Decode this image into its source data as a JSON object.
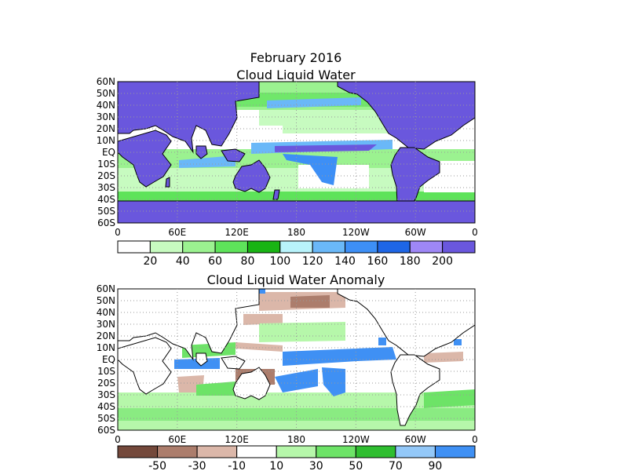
{
  "figure": {
    "title_line1": "February 2016",
    "title_line2": "Cloud Liquid Water",
    "anomaly_title": "Cloud Liquid Water Anomaly"
  },
  "axes": {
    "lat_labels": [
      "60N",
      "50N",
      "40N",
      "30N",
      "20N",
      "10N",
      "EQ",
      "10S",
      "20S",
      "30S",
      "40S",
      "50S",
      "60S"
    ],
    "lon_labels": [
      "0",
      "60E",
      "120E",
      "180",
      "120W",
      "60W",
      "0"
    ]
  },
  "colorbar_top": {
    "colors": [
      "#ffffff",
      "#c7fbc0",
      "#9bf290",
      "#5ee35a",
      "#19b414",
      "#b8f3fb",
      "#6ab8f8",
      "#3d8ff6",
      "#1e66e6",
      "#9e87f6",
      "#6a57dd"
    ],
    "tick_labels": [
      "20",
      "40",
      "60",
      "80",
      "100",
      "120",
      "140",
      "160",
      "180",
      "200"
    ]
  },
  "colorbar_bottom": {
    "colors": [
      "#74493b",
      "#ac7d6c",
      "#dbb7a9",
      "#ffffff",
      "#b6f7aa",
      "#6de367",
      "#2fbe30",
      "#93c8f8",
      "#3f90f4"
    ],
    "tick_labels": [
      "-50",
      "-30",
      "-10",
      "10",
      "30",
      "50",
      "70",
      "90"
    ]
  },
  "map_colors": {
    "land_top": "#6a57dd",
    "anom_blue": "#3f90f4",
    "anom_brown": "#ac7d6c",
    "anom_green": "#6de367",
    "grid": "#9a9a9a"
  }
}
